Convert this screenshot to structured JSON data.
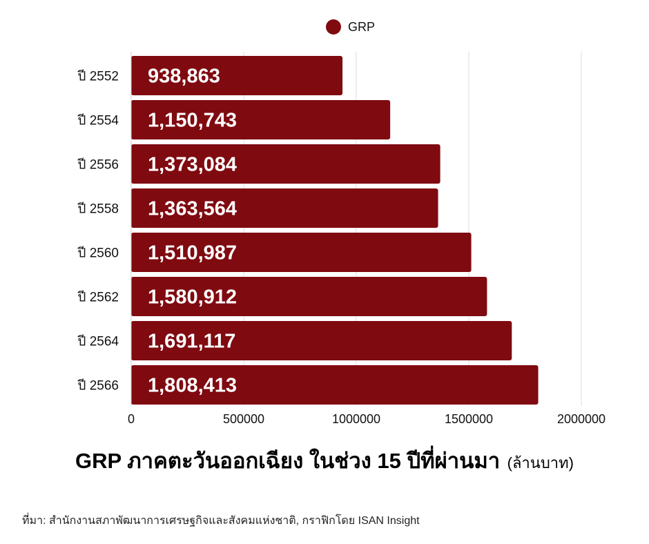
{
  "legend": {
    "label": "GRP",
    "color": "#7f0a10"
  },
  "title": {
    "main": "GRP ภาคตะวันออกเฉียง ในช่วง 15 ปีที่ผ่านมา",
    "unit": "(ล้านบาท)"
  },
  "source": "ที่มา: สำนักงานสภาพัฒนาการเศรษฐกิจและสังคมแห่งชาติ, กราฟิกโดย ISAN Insight",
  "colors": {
    "bar": "#7f0a10",
    "grid": "#dddddd",
    "bar_label": "#ffffff"
  },
  "chart_data": {
    "type": "bar",
    "orientation": "horizontal",
    "categories": [
      "ปี 2552",
      "ปี 2554",
      "ปี 2556",
      "ปี 2558",
      "ปี 2560",
      "ปี 2562",
      "ปี 2564",
      "ปี 2566"
    ],
    "series": [
      {
        "name": "GRP",
        "values": [
          938863,
          1150743,
          1373084,
          1363564,
          1510987,
          1580912,
          1691117,
          1808413
        ],
        "labels": [
          "938,863",
          "1,150,743",
          "1,373,084",
          "1,363,564",
          "1,510,987",
          "1,580,912",
          "1,691,117",
          "1,808,413"
        ]
      }
    ],
    "xlim": [
      0,
      2000000
    ],
    "xticks": [
      0,
      500000,
      1000000,
      1500000,
      2000000
    ],
    "xtick_labels": [
      "0",
      "500000",
      "1000000",
      "1500000",
      "2000000"
    ],
    "grid": true,
    "legend_position": "top-center"
  }
}
